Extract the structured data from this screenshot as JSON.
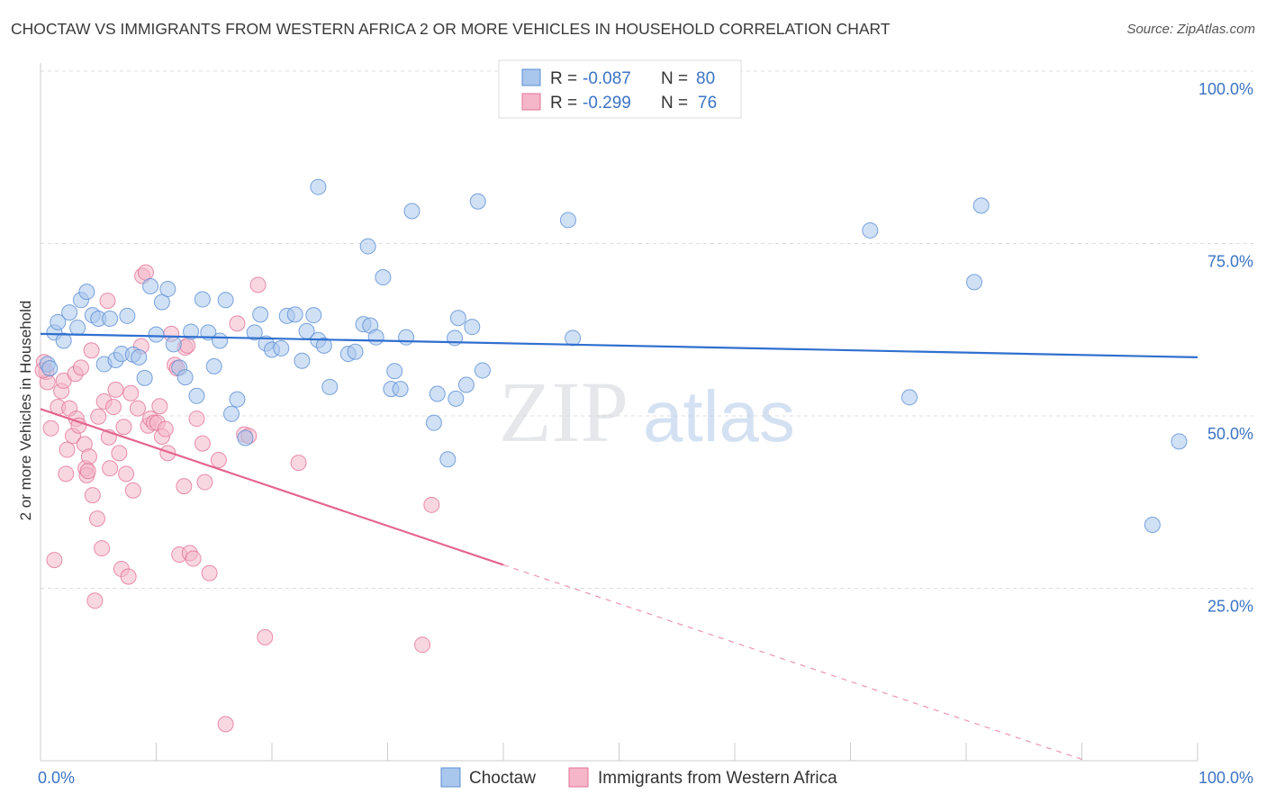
{
  "title": "CHOCTAW VS IMMIGRANTS FROM WESTERN AFRICA 2 OR MORE VEHICLES IN HOUSEHOLD CORRELATION CHART",
  "source": "Source: ZipAtlas.com",
  "watermark": {
    "zip": "ZIP",
    "atlas": "atlas"
  },
  "colors": {
    "choctaw_fill": "#a9c6ec",
    "choctaw_stroke": "#5b8fd4",
    "choctaw_line": "#2f6fcf",
    "immig_fill": "#f4b6c8",
    "immig_stroke": "#e27399",
    "immig_line": "#e4668f",
    "tick_label": "#3b73c4",
    "grid": "#dddddd"
  },
  "legend": {
    "rows": [
      {
        "r_label": "R =",
        "r_value": "-0.087",
        "n_label": "N =",
        "n_value": "80"
      },
      {
        "r_label": "R =",
        "r_value": "-0.299",
        "n_label": "N =",
        "n_value": "76"
      }
    ]
  },
  "bottom_legend": [
    "Choctaw",
    "Immigrants from Western Africa"
  ],
  "chart_data": {
    "type": "scatter",
    "title": "CHOCTAW VS IMMIGRANTS FROM WESTERN AFRICA 2 OR MORE VEHICLES IN HOUSEHOLD CORRELATION CHART",
    "xlabel": "",
    "ylabel": "2 or more Vehicles in Household",
    "xlim": [
      0,
      100
    ],
    "ylim": [
      0,
      100
    ],
    "x_tick_labels": [
      "0.0%",
      "100.0%"
    ],
    "y_ticks": [
      25,
      50,
      75,
      100
    ],
    "y_tick_labels": [
      "25.0%",
      "50.0%",
      "75.0%",
      "100.0%"
    ],
    "grid": true,
    "legend_placement": "top-center",
    "series": [
      {
        "name": "Choctaw",
        "r": -0.087,
        "n": 80,
        "trend": {
          "x": [
            0,
            100
          ],
          "y": [
            61.9,
            58.5
          ]
        },
        "points": [
          [
            0.6,
            57.5
          ],
          [
            0.8,
            56.9
          ],
          [
            1.2,
            62.1
          ],
          [
            1.5,
            63.6
          ],
          [
            2.0,
            60.9
          ],
          [
            2.5,
            65.0
          ],
          [
            3.2,
            62.8
          ],
          [
            3.5,
            66.8
          ],
          [
            4.0,
            68.0
          ],
          [
            4.5,
            64.6
          ],
          [
            5.0,
            64.1
          ],
          [
            5.5,
            57.5
          ],
          [
            6.0,
            64.1
          ],
          [
            6.5,
            58.1
          ],
          [
            7.0,
            59.0
          ],
          [
            7.5,
            64.5
          ],
          [
            8.0,
            58.9
          ],
          [
            8.5,
            58.5
          ],
          [
            9.0,
            55.5
          ],
          [
            9.5,
            68.8
          ],
          [
            10.0,
            61.8
          ],
          [
            10.5,
            66.5
          ],
          [
            11.0,
            68.4
          ],
          [
            11.5,
            60.4
          ],
          [
            12.0,
            57.0
          ],
          [
            12.5,
            55.6
          ],
          [
            13.0,
            62.2
          ],
          [
            13.5,
            52.9
          ],
          [
            14.0,
            66.9
          ],
          [
            14.5,
            62.1
          ],
          [
            15.0,
            57.2
          ],
          [
            15.5,
            60.9
          ],
          [
            16.0,
            66.8
          ],
          [
            16.5,
            50.3
          ],
          [
            17.0,
            52.4
          ],
          [
            17.7,
            46.8
          ],
          [
            18.5,
            62.1
          ],
          [
            19.0,
            64.7
          ],
          [
            19.5,
            60.5
          ],
          [
            20.0,
            59.6
          ],
          [
            20.8,
            59.8
          ],
          [
            21.3,
            64.5
          ],
          [
            22.0,
            64.7
          ],
          [
            22.6,
            58.0
          ],
          [
            23.0,
            62.3
          ],
          [
            23.6,
            64.6
          ],
          [
            24.0,
            61.0
          ],
          [
            24.5,
            60.2
          ],
          [
            25.0,
            54.2
          ],
          [
            26.6,
            59.0
          ],
          [
            27.2,
            59.3
          ],
          [
            27.9,
            63.3
          ],
          [
            28.5,
            63.1
          ],
          [
            29.0,
            61.4
          ],
          [
            29.6,
            70.1
          ],
          [
            28.3,
            74.6
          ],
          [
            24.0,
            83.2
          ],
          [
            30.3,
            53.9
          ],
          [
            30.6,
            56.5
          ],
          [
            31.1,
            53.9
          ],
          [
            31.6,
            61.4
          ],
          [
            32.1,
            79.7
          ],
          [
            34.0,
            49.0
          ],
          [
            34.3,
            53.2
          ],
          [
            35.2,
            43.7
          ],
          [
            35.8,
            61.3
          ],
          [
            36.1,
            64.2
          ],
          [
            35.9,
            52.5
          ],
          [
            36.8,
            54.5
          ],
          [
            37.3,
            62.9
          ],
          [
            38.2,
            56.6
          ],
          [
            37.8,
            81.1
          ],
          [
            45.6,
            78.4
          ],
          [
            46.0,
            61.3
          ],
          [
            71.7,
            76.9
          ],
          [
            75.1,
            52.7
          ],
          [
            80.7,
            69.4
          ],
          [
            81.3,
            80.5
          ],
          [
            98.4,
            46.3
          ],
          [
            96.1,
            34.2
          ]
        ]
      },
      {
        "name": "Immigrants from Western Africa",
        "r": -0.299,
        "n": 76,
        "trend": {
          "x": [
            0,
            40
          ],
          "y": [
            51.0,
            28.4
          ]
        },
        "trend_dashed": {
          "x": [
            40,
            90
          ],
          "y": [
            28.4,
            0.2
          ]
        },
        "points": [
          [
            0.3,
            57.8
          ],
          [
            0.5,
            56.4
          ],
          [
            0.6,
            54.9
          ],
          [
            0.9,
            48.2
          ],
          [
            1.2,
            29.1
          ],
          [
            1.5,
            51.3
          ],
          [
            1.8,
            53.6
          ],
          [
            2.0,
            55.1
          ],
          [
            2.2,
            41.6
          ],
          [
            2.3,
            45.1
          ],
          [
            2.5,
            51.1
          ],
          [
            2.8,
            47.1
          ],
          [
            3.0,
            56.1
          ],
          [
            3.1,
            49.6
          ],
          [
            3.3,
            48.6
          ],
          [
            3.5,
            57.0
          ],
          [
            3.8,
            45.9
          ],
          [
            3.9,
            42.4
          ],
          [
            4.0,
            41.4
          ],
          [
            4.2,
            44.1
          ],
          [
            4.4,
            59.5
          ],
          [
            4.5,
            38.5
          ],
          [
            4.7,
            23.2
          ],
          [
            4.9,
            35.1
          ],
          [
            5.0,
            49.9
          ],
          [
            5.3,
            30.8
          ],
          [
            5.5,
            52.1
          ],
          [
            5.8,
            66.7
          ],
          [
            5.9,
            46.9
          ],
          [
            6.0,
            42.4
          ],
          [
            6.3,
            51.3
          ],
          [
            6.5,
            53.8
          ],
          [
            6.8,
            44.6
          ],
          [
            7.0,
            27.8
          ],
          [
            7.2,
            48.4
          ],
          [
            7.4,
            41.6
          ],
          [
            7.6,
            26.7
          ],
          [
            7.8,
            53.3
          ],
          [
            8.0,
            39.2
          ],
          [
            8.4,
            51.1
          ],
          [
            8.7,
            60.1
          ],
          [
            8.8,
            70.3
          ],
          [
            9.1,
            70.8
          ],
          [
            9.3,
            48.6
          ],
          [
            9.5,
            49.6
          ],
          [
            9.8,
            49.0
          ],
          [
            10.1,
            49.0
          ],
          [
            10.3,
            51.4
          ],
          [
            10.5,
            47.0
          ],
          [
            10.8,
            48.1
          ],
          [
            11.0,
            44.6
          ],
          [
            11.3,
            61.9
          ],
          [
            11.6,
            57.4
          ],
          [
            11.8,
            56.9
          ],
          [
            12.0,
            29.9
          ],
          [
            12.4,
            39.8
          ],
          [
            12.5,
            59.9
          ],
          [
            12.7,
            60.2
          ],
          [
            12.9,
            30.1
          ],
          [
            13.2,
            29.3
          ],
          [
            13.5,
            49.6
          ],
          [
            14.0,
            46.0
          ],
          [
            14.2,
            40.4
          ],
          [
            14.6,
            27.2
          ],
          [
            15.4,
            43.6
          ],
          [
            16.0,
            5.3
          ],
          [
            17.0,
            63.4
          ],
          [
            17.6,
            47.3
          ],
          [
            18.0,
            47.1
          ],
          [
            18.8,
            69.0
          ],
          [
            19.4,
            17.9
          ],
          [
            22.3,
            43.2
          ],
          [
            33.0,
            16.8
          ],
          [
            33.8,
            37.1
          ],
          [
            0.2,
            56.6
          ],
          [
            4.1,
            42.0
          ]
        ]
      }
    ]
  }
}
